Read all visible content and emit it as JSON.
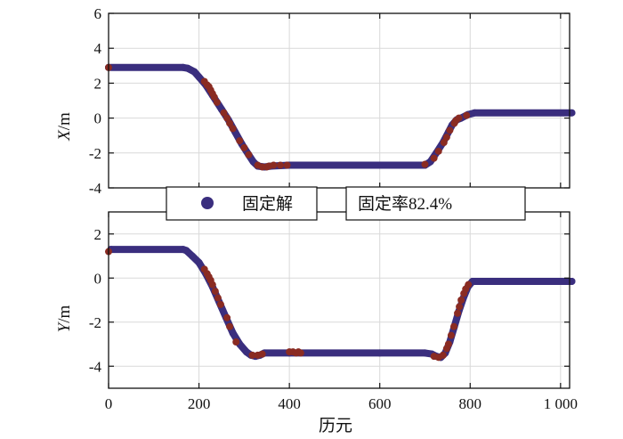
{
  "colors": {
    "fixed": "#3a2e7e",
    "float": "#8a2b22",
    "grid": "#d9d9d9",
    "axis": "#111111"
  },
  "legend": {
    "marker_label": "固定解",
    "rate_text": "固定率82.4%"
  },
  "chart_data": [
    {
      "type": "scatter",
      "panel": "top",
      "ylabel_italic": "X",
      "ylabel_unit": "/m",
      "xlim": [
        0,
        1020
      ],
      "ylim": [
        -4,
        6
      ],
      "x_ticks": [
        200,
        400,
        600,
        800,
        1000
      ],
      "y_ticks": [
        -4,
        -2,
        0,
        2,
        4,
        6
      ],
      "y_tick_labels": [
        "-4",
        "-2",
        "0",
        "2",
        "4",
        "6"
      ],
      "grid": true,
      "series": [
        {
          "name": "固定解",
          "color_key": "fixed",
          "segments": [
            {
              "x": [
                0,
                165,
                175,
                190,
                200,
                215,
                230,
                250,
                265,
                280,
                295,
                310,
                320,
                330,
                345,
                360,
                400,
                600,
                700,
                712,
                725,
                740,
                752,
                760,
                770,
                780,
                795,
                810,
                1025
              ],
              "y": [
                2.9,
                2.9,
                2.85,
                2.65,
                2.35,
                1.9,
                1.3,
                0.5,
                -0.1,
                -0.8,
                -1.5,
                -2.1,
                -2.5,
                -2.75,
                -2.8,
                -2.75,
                -2.7,
                -2.7,
                -2.7,
                -2.5,
                -2.0,
                -1.4,
                -0.8,
                -0.4,
                -0.1,
                0.0,
                0.2,
                0.3,
                0.3
              ]
            }
          ]
        },
        {
          "color_key": "float",
          "points": [
            [
              0,
              2.9
            ],
            [
              212,
              2.1
            ],
            [
              218,
              1.9
            ],
            [
              222,
              1.8
            ],
            [
              226,
              1.6
            ],
            [
              230,
              1.4
            ],
            [
              234,
              1.2
            ],
            [
              240,
              0.9
            ],
            [
              255,
              0.3
            ],
            [
              262,
              0.0
            ],
            [
              268,
              -0.3
            ],
            [
              275,
              -0.6
            ],
            [
              290,
              -1.3
            ],
            [
              300,
              -1.7
            ],
            [
              310,
              -2.1
            ],
            [
              330,
              -2.7
            ],
            [
              340,
              -2.8
            ],
            [
              350,
              -2.8
            ],
            [
              355,
              -2.75
            ],
            [
              365,
              -2.7
            ],
            [
              380,
              -2.7
            ],
            [
              395,
              -2.7
            ],
            [
              700,
              -2.65
            ],
            [
              720,
              -2.3
            ],
            [
              730,
              -1.9
            ],
            [
              742,
              -1.4
            ],
            [
              748,
              -1.1
            ],
            [
              755,
              -0.7
            ],
            [
              765,
              -0.3
            ],
            [
              768,
              -0.15
            ],
            [
              775,
              0.0
            ],
            [
              792,
              0.15
            ]
          ]
        }
      ]
    },
    {
      "type": "scatter",
      "panel": "bottom",
      "ylabel_italic": "Y",
      "ylabel_unit": "/m",
      "xlabel": "历元",
      "xlim": [
        0,
        1020
      ],
      "ylim": [
        -5,
        3
      ],
      "x_ticks": [
        0,
        200,
        400,
        600,
        800,
        1000
      ],
      "x_tick_labels": [
        "0",
        "200",
        "400",
        "600",
        "800",
        "1 000"
      ],
      "y_ticks": [
        -4,
        -2,
        0,
        2
      ],
      "y_tick_labels": [
        "-4",
        "-2",
        "0",
        "2"
      ],
      "grid": true,
      "series": [
        {
          "name": "固定解",
          "color_key": "fixed",
          "segments": [
            {
              "x": [
                5,
                165,
                172,
                185,
                200,
                215,
                230,
                245,
                260,
                275,
                290,
                305,
                315,
                325,
                335,
                345,
                400,
                600,
                700,
                715,
                725,
                735,
                745,
                755,
                765,
                775,
                785,
                795,
                805,
                1025
              ],
              "y": [
                1.3,
                1.3,
                1.25,
                1.0,
                0.7,
                0.2,
                -0.4,
                -1.1,
                -1.8,
                -2.5,
                -3.0,
                -3.35,
                -3.5,
                -3.55,
                -3.5,
                -3.4,
                -3.4,
                -3.4,
                -3.4,
                -3.45,
                -3.55,
                -3.6,
                -3.4,
                -2.9,
                -2.2,
                -1.5,
                -0.9,
                -0.4,
                -0.15,
                -0.15
              ]
            }
          ]
        },
        {
          "color_key": "float",
          "points": [
            [
              0,
              1.2
            ],
            [
              212,
              0.4
            ],
            [
              218,
              0.2
            ],
            [
              222,
              0.05
            ],
            [
              226,
              -0.1
            ],
            [
              230,
              -0.3
            ],
            [
              236,
              -0.6
            ],
            [
              242,
              -0.9
            ],
            [
              248,
              -1.2
            ],
            [
              262,
              -1.8
            ],
            [
              268,
              -2.2
            ],
            [
              282,
              -2.9
            ],
            [
              318,
              -3.5
            ],
            [
              330,
              -3.5
            ],
            [
              340,
              -3.45
            ],
            [
              400,
              -3.35
            ],
            [
              408,
              -3.35
            ],
            [
              415,
              -3.4
            ],
            [
              420,
              -3.35
            ],
            [
              425,
              -3.4
            ],
            [
              720,
              -3.55
            ],
            [
              730,
              -3.6
            ],
            [
              740,
              -3.5
            ],
            [
              748,
              -3.2
            ],
            [
              752,
              -3.0
            ],
            [
              758,
              -2.6
            ],
            [
              764,
              -2.2
            ],
            [
              772,
              -1.6
            ],
            [
              776,
              -1.3
            ],
            [
              780,
              -1.0
            ],
            [
              786,
              -0.7
            ],
            [
              790,
              -0.5
            ],
            [
              796,
              -0.3
            ]
          ]
        }
      ]
    }
  ]
}
